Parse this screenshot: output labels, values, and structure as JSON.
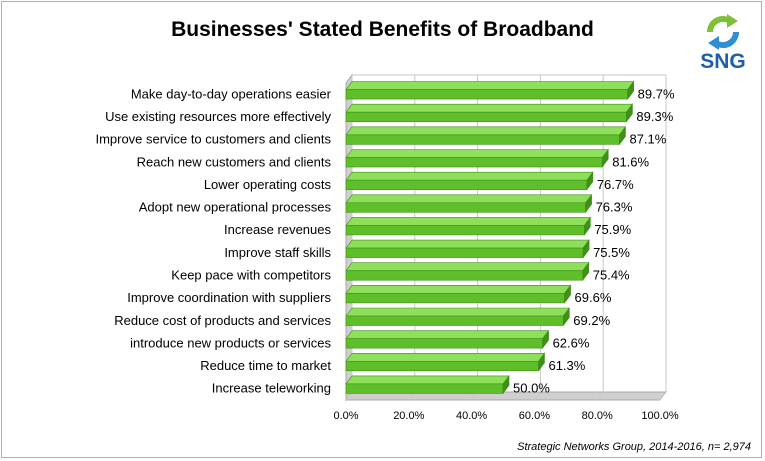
{
  "title": "Businesses' Stated Benefits of Broadband",
  "source": "Strategic Networks Group, 2014-2016, n= 2,974",
  "logo": {
    "text": "SNG",
    "icon": "sng-arrows-logo"
  },
  "colors": {
    "bar": "#5fbf2a",
    "bar_dark": "#3f8f18",
    "bar_light": "#8ee05a",
    "wall": "#cfcfcf",
    "grid": "#c8c8c8"
  },
  "chart_data": {
    "type": "bar",
    "orientation": "horizontal",
    "style": "3d",
    "title": "Businesses' Stated Benefits of Broadband",
    "xlabel": "",
    "ylabel": "",
    "xlim": [
      0,
      100
    ],
    "x_ticks": [
      "0.0%",
      "20.0%",
      "40.0%",
      "60.0%",
      "80.0%",
      "100.0%"
    ],
    "grid": true,
    "legend": "none",
    "categories": [
      "Make day-to-day operations easier",
      "Use existing resources more effectively",
      "Improve service to customers and clients",
      "Reach new customers and clients",
      "Lower operating costs",
      "Adopt new operational processes",
      "Increase revenues",
      "Improve staff skills",
      "Keep pace with competitors",
      "Improve coordination with suppliers",
      "Reduce cost of products and services",
      "introduce new products or services",
      "Reduce time to market",
      "Increase teleworking"
    ],
    "values": [
      89.7,
      89.3,
      87.1,
      81.6,
      76.7,
      76.3,
      75.9,
      75.5,
      75.4,
      69.6,
      69.2,
      62.6,
      61.3,
      50.0
    ],
    "data_labels": [
      "89.7%",
      "89.3%",
      "87.1%",
      "81.6%",
      "76.7%",
      "76.3%",
      "75.9%",
      "75.5%",
      "75.4%",
      "69.6%",
      "69.2%",
      "62.6%",
      "61.3%",
      "50.0%"
    ]
  }
}
